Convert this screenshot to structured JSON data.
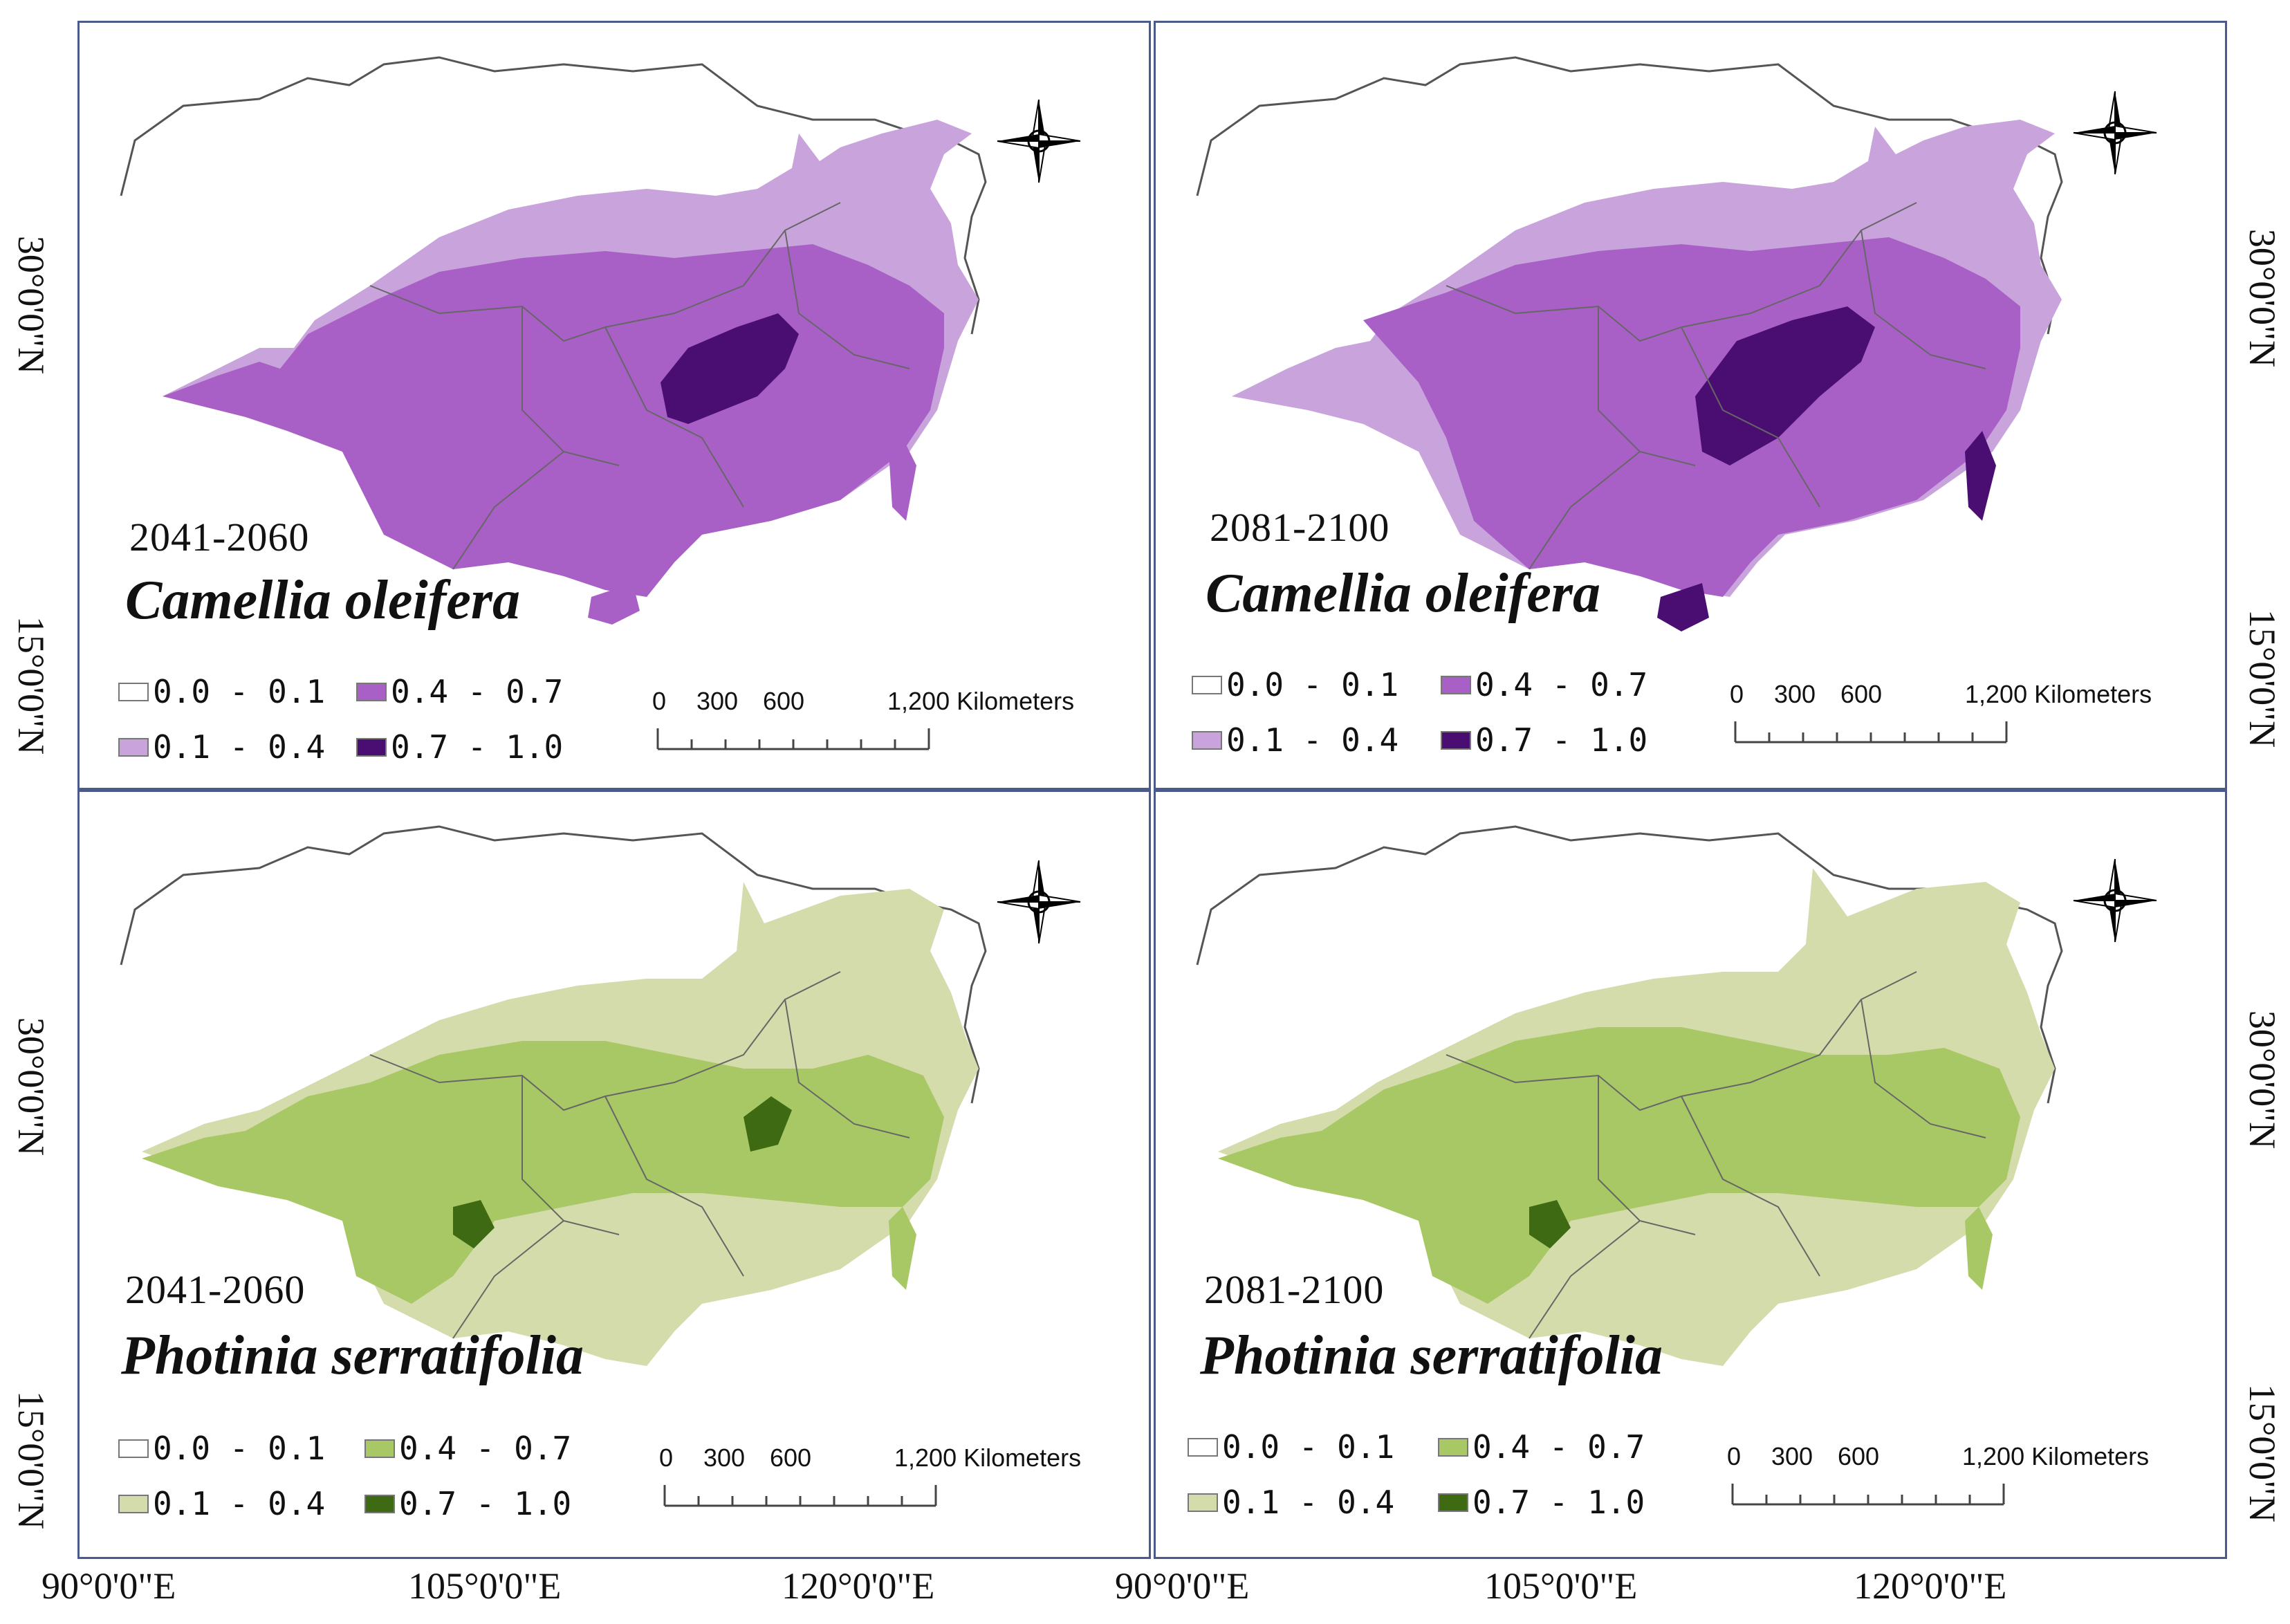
{
  "legend": {
    "classes": [
      "0.0 - 0.1",
      "0.1 - 0.4",
      "0.4 - 0.7",
      "0.7 - 1.0"
    ]
  },
  "scale_bar": {
    "ticks": [
      "0",
      "300",
      "600",
      "1,200 Kilometers"
    ]
  },
  "compass": {
    "n": "N",
    "s": "S",
    "e": "E",
    "w": "W"
  },
  "panels": [
    {
      "period": "2041-2060",
      "species": "Camellia oleifera",
      "colors": [
        "#ffffff",
        "#c9a3dc",
        "#a860c6",
        "#4a0e72"
      ]
    },
    {
      "period": "2081-2100",
      "species": "Camellia oleifera",
      "colors": [
        "#ffffff",
        "#c9a3dc",
        "#a860c6",
        "#4a0e72"
      ]
    },
    {
      "period": "2041-2060",
      "species": "Photinia serratifolia",
      "colors": [
        "#ffffff",
        "#d4dcac",
        "#a8c866",
        "#3e6a14"
      ]
    },
    {
      "period": "2081-2100",
      "species": "Photinia serratifolia",
      "colors": [
        "#ffffff",
        "#d4dcac",
        "#a8c866",
        "#3e6a14"
      ]
    }
  ],
  "axes": {
    "x": [
      "90°0'0\"E",
      "105°0'0\"E",
      "120°0'0\"E",
      "90°0'0\"E",
      "105°0'0\"E",
      "120°0'0\"E"
    ],
    "y_left": [
      "30°0'0\"N",
      "15°0'0\"N",
      "30°0'0\"N",
      "15°0'0\"N"
    ],
    "y_right": [
      "30°0'0\"N",
      "15°0'0\"N",
      "30°0'0\"N",
      "15°0'0\"N"
    ]
  }
}
